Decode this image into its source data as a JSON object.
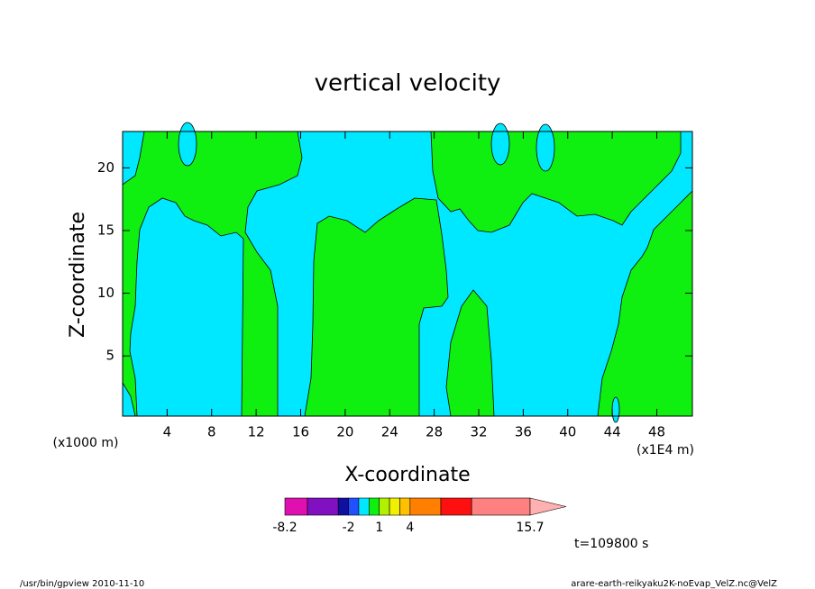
{
  "chart_data": {
    "type": "contour",
    "title": "vertical velocity",
    "x_label": "X-coordinate",
    "y_label": "Z-coordinate",
    "x_unit": "(x1E4 m)",
    "y_unit": "(x1000 m)",
    "xlim": [
      0,
      51.2
    ],
    "xticks": [
      4,
      8,
      12,
      16,
      20,
      24,
      28,
      32,
      36,
      40,
      44,
      48
    ],
    "ylim": [
      0.2,
      22.9
    ],
    "yticks": [
      5,
      10,
      15,
      20
    ],
    "colorbar": {
      "levels": [
        -8.2,
        -6,
        -3,
        -2,
        -1,
        0,
        1,
        2,
        3,
        4,
        7,
        10,
        15.7
      ],
      "colors": [
        "#e010b0",
        "#8010c0",
        "#1010a0",
        "#2050ff",
        "#00e8ff",
        "#10f010",
        "#b0f000",
        "#f0f000",
        "#ffc000",
        "#ff8000",
        "#ff1010",
        "#ff8080"
      ],
      "extend_color": "#ffb0b0",
      "ticks": [
        -8.2,
        -2,
        1,
        4,
        15.7
      ]
    },
    "time_label": "t=109800 s",
    "footer_left": "/usr/bin/gpview  2010-11-10",
    "footer_right": "arare-earth-reikyaku2K-noEvap_VelZ.nc@VelZ"
  }
}
